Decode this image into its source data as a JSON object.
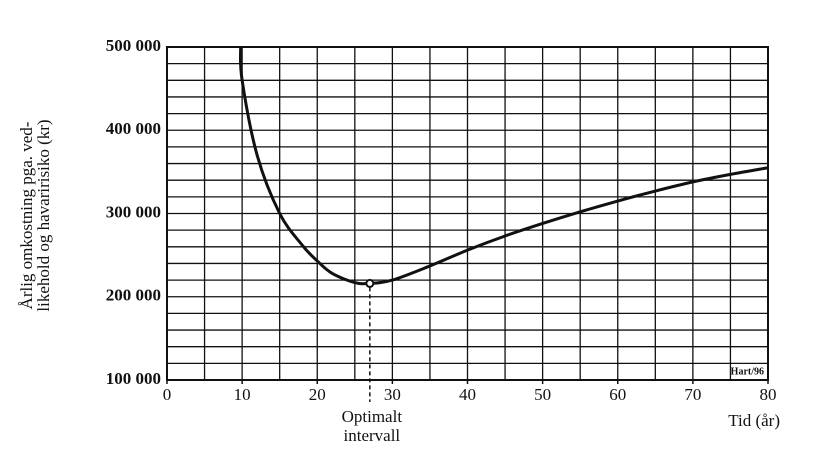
{
  "chart_data": {
    "type": "line",
    "y_label_lines": [
      "Årlig omkostning pga. ved-",
      "likehold og havaririsiko (kr)"
    ],
    "x_label": "Tid (år)",
    "annotation_lines": [
      "Optimalt",
      "intervall"
    ],
    "credit": "Hart/96",
    "x": [
      9.8,
      10,
      12,
      15,
      18,
      20,
      22,
      25,
      27,
      30,
      35,
      40,
      45,
      50,
      55,
      60,
      65,
      70,
      75,
      80
    ],
    "values": [
      500000,
      460000,
      370000,
      300000,
      262000,
      243000,
      228000,
      217000,
      216000,
      220000,
      237000,
      256000,
      273000,
      288000,
      302000,
      315000,
      327000,
      338000,
      347000,
      355000
    ],
    "color": "#111111",
    "optimum": {
      "x": 27,
      "y": 216000
    },
    "xlim": [
      0,
      80
    ],
    "ylim": [
      100000,
      500000
    ],
    "xticks": [
      0,
      10,
      20,
      30,
      40,
      50,
      60,
      70,
      80
    ],
    "yticks": [
      {
        "value": 100000,
        "label": "100 000"
      },
      {
        "value": 200000,
        "label": "200 000"
      },
      {
        "value": 300000,
        "label": "300 000"
      },
      {
        "value": 400000,
        "label": "400 000"
      },
      {
        "value": 500000,
        "label": "500 000"
      }
    ],
    "grid_x": [
      0,
      5,
      10,
      15,
      20,
      25,
      30,
      35,
      40,
      45,
      50,
      55,
      60,
      65,
      70,
      75,
      80
    ],
    "grid_y": [
      100000,
      120000,
      140000,
      160000,
      180000,
      200000,
      220000,
      240000,
      260000,
      280000,
      300000,
      320000,
      340000,
      360000,
      380000,
      400000,
      420000,
      440000,
      460000,
      480000,
      500000
    ]
  }
}
